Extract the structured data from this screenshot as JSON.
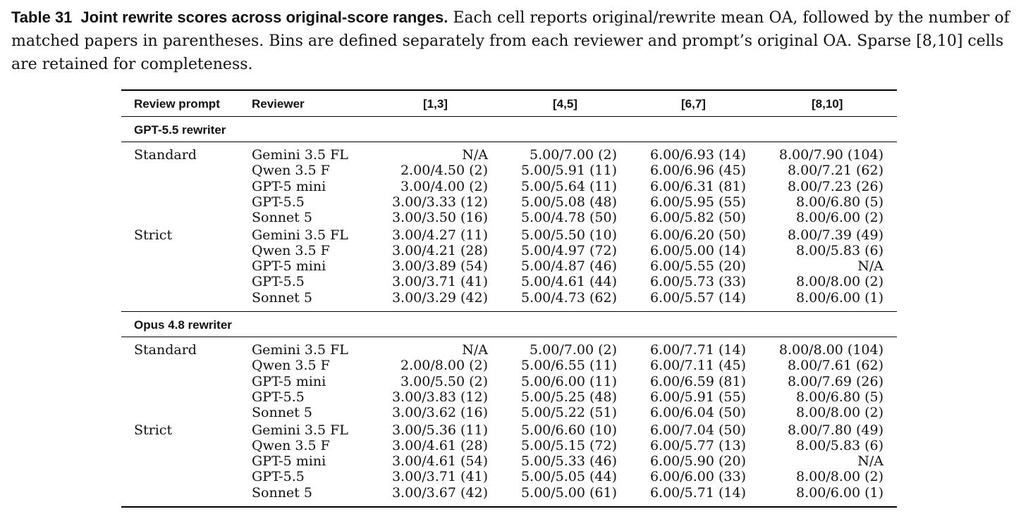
{
  "caption": {
    "label": "Table 31",
    "title": "Joint rewrite scores across original-score ranges.",
    "text": "Each cell reports original/rewrite mean OA, followed by the number of matched papers in parentheses. Bins are defined separately from each reviewer and prompt’s original OA. Sparse [8,10] cells are retained for completeness."
  },
  "columns": [
    "Review prompt",
    "Reviewer",
    "[1,3]",
    "[4,5]",
    "[6,7]",
    "[8,10]"
  ],
  "groups": [
    {
      "title": "GPT-5.5 rewriter",
      "rows": [
        {
          "prompt": "Standard",
          "reviewer": "Gemini 3.5 FL",
          "v": [
            "N/A",
            "5.00/7.00 (2)",
            "6.00/6.93 (14)",
            "8.00/7.90 (104)"
          ]
        },
        {
          "prompt": "",
          "reviewer": "Qwen 3.5 F",
          "v": [
            "2.00/4.50 (2)",
            "5.00/5.91 (11)",
            "6.00/6.96 (45)",
            "8.00/7.21 (62)"
          ]
        },
        {
          "prompt": "",
          "reviewer": "GPT-5 mini",
          "v": [
            "3.00/4.00 (2)",
            "5.00/5.64 (11)",
            "6.00/6.31 (81)",
            "8.00/7.23 (26)"
          ]
        },
        {
          "prompt": "",
          "reviewer": "GPT-5.5",
          "v": [
            "3.00/3.33 (12)",
            "5.00/5.08 (48)",
            "6.00/5.95 (55)",
            "8.00/6.80 (5)"
          ]
        },
        {
          "prompt": "",
          "reviewer": "Sonnet 5",
          "v": [
            "3.00/3.50 (16)",
            "5.00/4.78 (50)",
            "6.00/5.82 (50)",
            "8.00/6.00 (2)"
          ]
        },
        {
          "prompt": "Strict",
          "reviewer": "Gemini 3.5 FL",
          "v": [
            "3.00/4.27 (11)",
            "5.00/5.50 (10)",
            "6.00/6.20 (50)",
            "8.00/7.39 (49)"
          ]
        },
        {
          "prompt": "",
          "reviewer": "Qwen 3.5 F",
          "v": [
            "3.00/4.21 (28)",
            "5.00/4.97 (72)",
            "6.00/5.00 (14)",
            "8.00/5.83 (6)"
          ]
        },
        {
          "prompt": "",
          "reviewer": "GPT-5 mini",
          "v": [
            "3.00/3.89 (54)",
            "5.00/4.87 (46)",
            "6.00/5.55 (20)",
            "N/A"
          ]
        },
        {
          "prompt": "",
          "reviewer": "GPT-5.5",
          "v": [
            "3.00/3.71 (41)",
            "5.00/4.61 (44)",
            "6.00/5.73 (33)",
            "8.00/8.00 (2)"
          ]
        },
        {
          "prompt": "",
          "reviewer": "Sonnet 5",
          "v": [
            "3.00/3.29 (42)",
            "5.00/4.73 (62)",
            "6.00/5.57 (14)",
            "8.00/6.00 (1)"
          ]
        }
      ]
    },
    {
      "title": "Opus 4.8 rewriter",
      "rows": [
        {
          "prompt": "Standard",
          "reviewer": "Gemini 3.5 FL",
          "v": [
            "N/A",
            "5.00/7.00 (2)",
            "6.00/7.71 (14)",
            "8.00/8.00 (104)"
          ]
        },
        {
          "prompt": "",
          "reviewer": "Qwen 3.5 F",
          "v": [
            "2.00/8.00 (2)",
            "5.00/6.55 (11)",
            "6.00/7.11 (45)",
            "8.00/7.61 (62)"
          ]
        },
        {
          "prompt": "",
          "reviewer": "GPT-5 mini",
          "v": [
            "3.00/5.50 (2)",
            "5.00/6.00 (11)",
            "6.00/6.59 (81)",
            "8.00/7.69 (26)"
          ]
        },
        {
          "prompt": "",
          "reviewer": "GPT-5.5",
          "v": [
            "3.00/3.83 (12)",
            "5.00/5.25 (48)",
            "6.00/5.91 (55)",
            "8.00/6.80 (5)"
          ]
        },
        {
          "prompt": "",
          "reviewer": "Sonnet 5",
          "v": [
            "3.00/3.62 (16)",
            "5.00/5.22 (51)",
            "6.00/6.04 (50)",
            "8.00/8.00 (2)"
          ]
        },
        {
          "prompt": "Strict",
          "reviewer": "Gemini 3.5 FL",
          "v": [
            "3.00/5.36 (11)",
            "5.00/6.60 (10)",
            "6.00/7.04 (50)",
            "8.00/7.80 (49)"
          ]
        },
        {
          "prompt": "",
          "reviewer": "Qwen 3.5 F",
          "v": [
            "3.00/4.61 (28)",
            "5.00/5.15 (72)",
            "6.00/5.77 (13)",
            "8.00/5.83 (6)"
          ]
        },
        {
          "prompt": "",
          "reviewer": "GPT-5 mini",
          "v": [
            "3.00/4.61 (54)",
            "5.00/5.33 (46)",
            "6.00/5.90 (20)",
            "N/A"
          ]
        },
        {
          "prompt": "",
          "reviewer": "GPT-5.5",
          "v": [
            "3.00/3.71 (41)",
            "5.00/5.05 (44)",
            "6.00/6.00 (33)",
            "8.00/8.00 (2)"
          ]
        },
        {
          "prompt": "",
          "reviewer": "Sonnet 5",
          "v": [
            "3.00/3.67 (42)",
            "5.00/5.00 (61)",
            "6.00/5.71 (14)",
            "8.00/6.00 (1)"
          ]
        }
      ]
    }
  ]
}
